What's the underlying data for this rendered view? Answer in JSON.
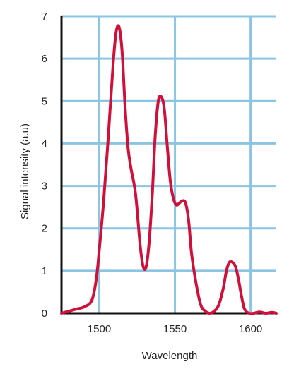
{
  "chart_data": {
    "type": "line",
    "title": "",
    "xlabel": "Wavelength",
    "ylabel": "Signal intensity (a.u)",
    "xlim": [
      1475,
      1617
    ],
    "ylim": [
      0,
      7
    ],
    "x_ticks": [
      1500,
      1550,
      1600
    ],
    "y_ticks": [
      0,
      1,
      2,
      3,
      4,
      5,
      6,
      7
    ],
    "x_tick_labels": [
      "1500",
      "1550",
      "1600"
    ],
    "y_tick_labels": [
      "0",
      "1",
      "2",
      "3",
      "4",
      "5",
      "6",
      "7"
    ],
    "grid": true,
    "colors": {
      "line": "#d0103a",
      "grid": "#8cc4e4",
      "axis": "#111111"
    },
    "series": [
      {
        "x": [
          1475,
          1480,
          1485,
          1490,
          1495,
          1498,
          1500,
          1503,
          1506,
          1509,
          1511,
          1513,
          1515,
          1517,
          1519,
          1521,
          1524,
          1527,
          1529,
          1531,
          1533,
          1535,
          1537,
          1539,
          1541,
          1543,
          1545,
          1547,
          1549,
          1551,
          1553,
          1555,
          1557,
          1559,
          1561,
          1564,
          1567,
          1570,
          1573,
          1576,
          1579,
          1582,
          1584,
          1586,
          1588,
          1590,
          1592,
          1594,
          1596,
          1599,
          1602,
          1606,
          1610,
          1614,
          1617
        ],
        "y": [
          0.0,
          0.05,
          0.1,
          0.15,
          0.3,
          0.8,
          1.5,
          2.7,
          4.2,
          5.8,
          6.6,
          6.75,
          6.2,
          4.9,
          3.9,
          3.4,
          2.8,
          1.6,
          1.1,
          1.1,
          1.7,
          2.8,
          4.2,
          5.0,
          5.1,
          4.8,
          3.9,
          3.1,
          2.7,
          2.55,
          2.6,
          2.65,
          2.6,
          2.2,
          1.4,
          0.7,
          0.2,
          0.05,
          0.0,
          0.05,
          0.2,
          0.6,
          1.0,
          1.2,
          1.2,
          1.1,
          0.8,
          0.4,
          0.1,
          0.0,
          0.0,
          0.03,
          0.0,
          0.02,
          0.0
        ]
      }
    ]
  }
}
